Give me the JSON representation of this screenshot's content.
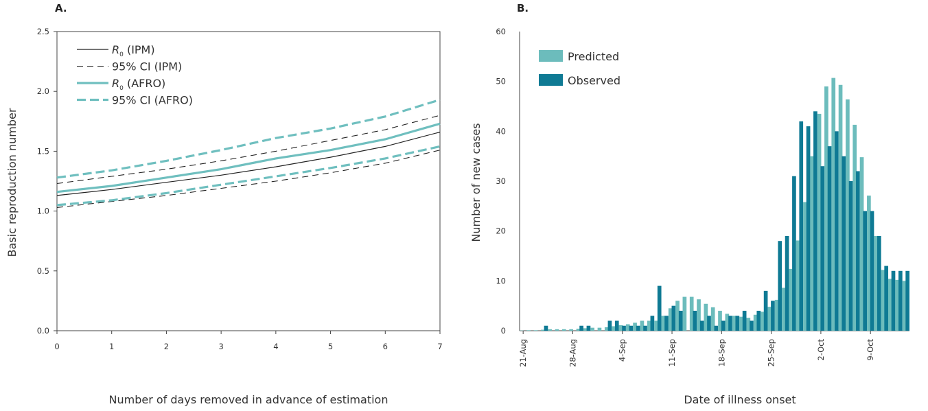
{
  "chart_data": [
    {
      "panel": "A.",
      "type": "line",
      "xlabel": "Number of days removed in advance of estimation",
      "ylabel": "Basic reproduction number",
      "x": [
        0,
        1,
        2,
        3,
        4,
        5,
        6,
        7
      ],
      "xticks": [
        "0",
        "1",
        "2",
        "3",
        "4",
        "5",
        "6",
        "7"
      ],
      "yticks": [
        "0.0",
        "0.5",
        "1.0",
        "1.5",
        "2.0",
        "2.5"
      ],
      "ylim": [
        0,
        2.5
      ],
      "xlim": [
        0,
        7
      ],
      "grid": false,
      "legend_position": "top-left",
      "series": [
        {
          "name": "R₀ (IPM)",
          "legend_symbol": "R",
          "legend_subscript": "0",
          "legend_suffix": "(IPM)",
          "style": "solid-thin",
          "color": "#222222",
          "values": [
            1.13,
            1.18,
            1.24,
            1.3,
            1.37,
            1.45,
            1.54,
            1.66
          ]
        },
        {
          "name": "95% CI (IPM) upper",
          "legend_label": "95% CI (IPM)",
          "style": "dashed-thin",
          "color": "#222222",
          "show_in_legend": true,
          "values": [
            1.23,
            1.29,
            1.35,
            1.42,
            1.5,
            1.59,
            1.68,
            1.8
          ]
        },
        {
          "name": "95% CI (IPM) lower",
          "style": "dashed-thin",
          "color": "#222222",
          "show_in_legend": false,
          "values": [
            1.03,
            1.08,
            1.13,
            1.19,
            1.25,
            1.32,
            1.4,
            1.51
          ]
        },
        {
          "name": "R₀ (AFRO)",
          "legend_symbol": "R",
          "legend_subscript": "0",
          "legend_suffix": "(AFRO)",
          "style": "solid-thick",
          "color": "#6fbfbf",
          "values": [
            1.16,
            1.21,
            1.28,
            1.35,
            1.44,
            1.51,
            1.6,
            1.73
          ]
        },
        {
          "name": "95% CI (AFRO) upper",
          "legend_label": "95% CI (AFRO)",
          "style": "dashed-thick",
          "color": "#6fbfbf",
          "show_in_legend": true,
          "values": [
            1.28,
            1.34,
            1.42,
            1.51,
            1.61,
            1.69,
            1.79,
            1.93
          ]
        },
        {
          "name": "95% CI (AFRO) lower",
          "style": "dashed-thick",
          "color": "#6fbfbf",
          "show_in_legend": false,
          "values": [
            1.05,
            1.09,
            1.15,
            1.22,
            1.29,
            1.36,
            1.44,
            1.54
          ]
        }
      ]
    },
    {
      "panel": "B.",
      "type": "bar",
      "xlabel": "Date of illness onset",
      "ylabel": "Number of new cases",
      "ylim": [
        0,
        60
      ],
      "yticks": [
        "0",
        "10",
        "20",
        "30",
        "40",
        "50",
        "60"
      ],
      "xticks": [
        "21-Aug",
        "28-Aug",
        "4-Sep",
        "11-Sep",
        "18-Sep",
        "25-Sep",
        "2-Oct",
        "9-Oct"
      ],
      "x_start": "21-Aug",
      "days": 55,
      "grid": false,
      "legend_position": "top-left",
      "colors": {
        "Predicted": "#6cbcbc",
        "Observed": "#0f7a94"
      },
      "series": [
        {
          "name": "Predicted",
          "color": "#6cbcbc",
          "values": [
            0.05,
            0.1,
            0.1,
            0.2,
            0.3,
            0.3,
            0.3,
            0.3,
            0.4,
            0.5,
            0.6,
            0.6,
            0.7,
            0.9,
            1.1,
            1.3,
            1.6,
            2.0,
            2.0,
            2.0,
            3.0,
            4.5,
            6.0,
            6.8,
            6.8,
            6.3,
            5.4,
            4.7,
            4.0,
            3.4,
            3.0,
            2.8,
            2.6,
            3.2,
            3.8,
            4.8,
            6.2,
            8.6,
            12.4,
            18.1,
            25.8,
            35.0,
            43.5,
            49.0,
            50.7,
            49.3,
            46.4,
            41.3,
            34.8,
            27.1,
            19.0,
            12.2,
            10.4,
            10.2,
            10.0
          ]
        },
        {
          "name": "Observed",
          "color": "#0f7a94",
          "values": [
            0,
            0,
            0,
            1,
            0,
            0,
            0,
            0,
            1,
            1,
            0,
            0,
            2,
            2,
            1,
            1,
            1,
            1,
            3,
            9,
            3,
            5,
            4,
            0,
            4,
            2,
            3,
            1,
            2,
            3,
            3,
            4,
            2,
            4,
            8,
            6,
            18,
            19,
            31,
            42,
            41,
            44,
            33,
            37,
            40,
            35,
            30,
            32,
            24,
            24,
            19,
            13,
            12,
            12,
            12
          ]
        }
      ]
    }
  ]
}
